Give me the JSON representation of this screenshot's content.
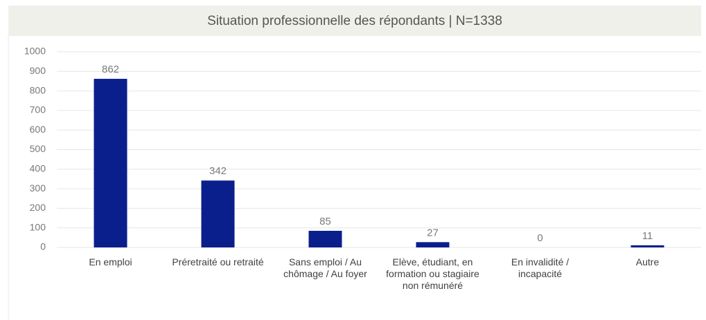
{
  "chart_data": {
    "type": "bar",
    "title": "Situation professionnelle des répondants | N=1338",
    "categories": [
      "En emploi",
      "Préretraité ou retraité",
      "Sans emploi / Au chômage / Au foyer",
      "Elève, étudiant, en formation ou stagiaire non rémunéré",
      "En invalidité / incapacité",
      "Autre"
    ],
    "values": [
      862,
      342,
      85,
      27,
      0,
      11
    ],
    "color": "#0b1f8c",
    "ylim": [
      0,
      1000
    ],
    "yticks": [
      0,
      100,
      200,
      300,
      400,
      500,
      600,
      700,
      800,
      900,
      1000
    ],
    "grid": true
  }
}
